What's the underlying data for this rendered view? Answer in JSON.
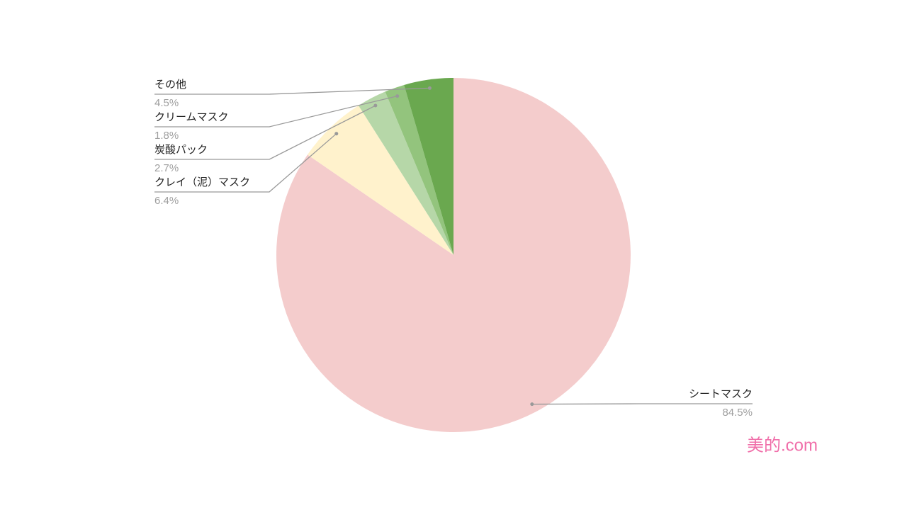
{
  "chart_data": {
    "type": "pie",
    "categories": [
      "シートマスク",
      "クレイ（泥）マスク",
      "炭酸パック",
      "クリームマスク",
      "その他"
    ],
    "values": [
      84.5,
      6.4,
      2.7,
      1.8,
      4.5
    ],
    "value_labels": [
      "84.5%",
      "6.4%",
      "2.7%",
      "1.8%",
      "4.5%"
    ],
    "colors": [
      "#f4cccc",
      "#fff2cc",
      "#b6d7a8",
      "#93c47d",
      "#6aa84f"
    ],
    "watermark": "美的.com"
  }
}
